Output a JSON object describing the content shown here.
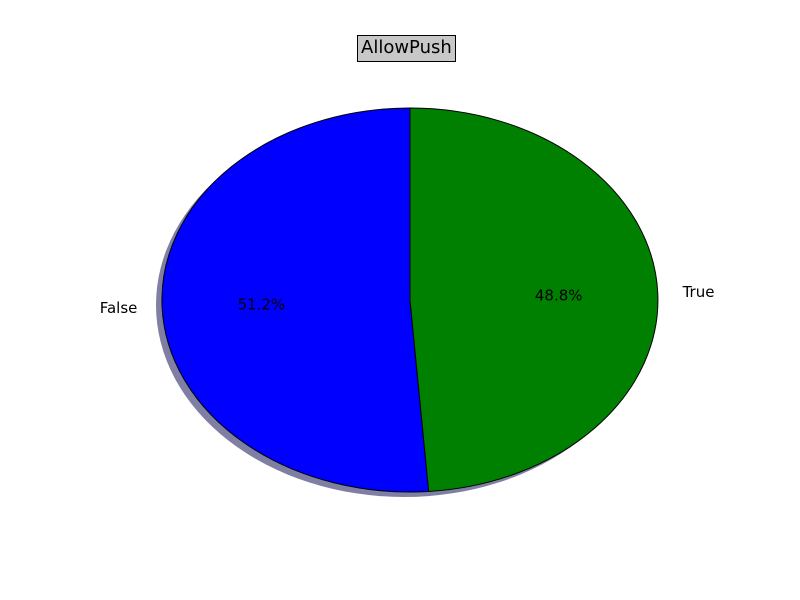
{
  "chart_data": {
    "type": "pie",
    "title": "AllowPush",
    "categories": [
      "False",
      "True"
    ],
    "values": [
      51.2,
      48.8
    ],
    "percent_labels": [
      "51.2%",
      "48.8%"
    ],
    "colors": [
      "#0000ff",
      "#008000"
    ],
    "shadow": true,
    "start_angle_deg": 90,
    "direction": "counterclockwise"
  }
}
